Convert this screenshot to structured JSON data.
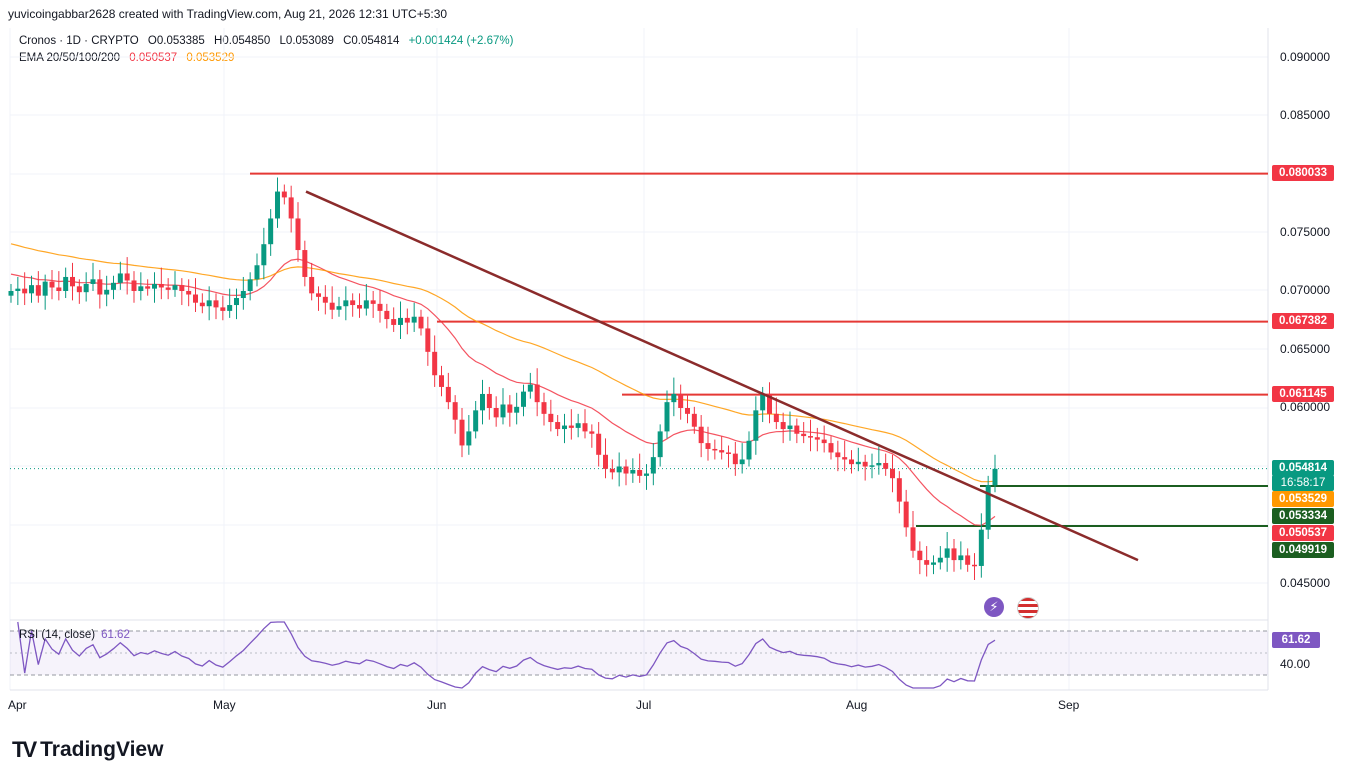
{
  "header": {
    "attribution": "yuvicoingabbar2628 created with TradingView.com, Aug 21, 2026 12:31 UTC+5:30"
  },
  "legend": {
    "symbol": "Cronos · 1D · CRYPTO",
    "open": "O0.053385",
    "high": "H0.054850",
    "low": "L0.053089",
    "close": "C0.054814",
    "change": "+0.001424 (+2.67%)",
    "ema_label": "EMA 20/50/100/200",
    "ema1": "0.050537",
    "ema2": "0.053529"
  },
  "rsi_legend": {
    "label": "RSI (14, close)",
    "value": "61.62"
  },
  "brand": {
    "name": "TradingView",
    "logo": "TV"
  },
  "colors": {
    "up": "#089981",
    "down": "#f23645",
    "ema20": "#f23645",
    "ema50": "#ff9800",
    "trendline": "#8b2b2b",
    "support": "#1b5e20",
    "resistance": "#e53935",
    "rsi": "#7e57c2"
  },
  "icons": [
    "lightning-icon",
    "us-flag-icon"
  ],
  "chart_data": {
    "type": "candlestick",
    "symbol": "Cronos",
    "interval": "1D",
    "x_labels": [
      "Apr",
      "May",
      "Jun",
      "Jul",
      "Aug",
      "Sep"
    ],
    "y_ticks": [
      "0.090000",
      "0.085000",
      "0.075000",
      "0.070000",
      "0.065000",
      "0.060000",
      "0.045000"
    ],
    "ylim": [
      0.0435,
      0.0912
    ],
    "price_labels": {
      "resistance_1": "0.080033",
      "resistance_2": "0.067382",
      "resistance_3": "0.061145",
      "last_price": "0.054814",
      "countdown": "16:58:17",
      "ema50_value": "0.053529",
      "support_1": "0.053334",
      "ema20_value": "0.050537",
      "support_2": "0.049919"
    },
    "horizontal_levels": {
      "resistance": [
        0.080033,
        0.067382,
        0.061145
      ],
      "support": [
        0.053334,
        0.049919
      ],
      "last_price": 0.054814
    },
    "trendline": {
      "from": [
        0.0785
      ],
      "to": [
        0.047
      ]
    },
    "rsi": {
      "period": 14,
      "source": "close",
      "value": 61.62,
      "tick": "40.00"
    },
    "ohlc_path": [
      0.07,
      0.0702,
      0.0698,
      0.0705,
      0.0696,
      0.0708,
      0.0703,
      0.07,
      0.0712,
      0.0704,
      0.0699,
      0.0706,
      0.071,
      0.0697,
      0.0701,
      0.0707,
      0.0715,
      0.0709,
      0.07,
      0.0704,
      0.0702,
      0.0706,
      0.0703,
      0.0701,
      0.0705,
      0.07,
      0.0697,
      0.069,
      0.0687,
      0.0692,
      0.0686,
      0.0683,
      0.0688,
      0.0694,
      0.07,
      0.071,
      0.0722,
      0.074,
      0.0762,
      0.0785,
      0.078,
      0.0762,
      0.0735,
      0.0712,
      0.0698,
      0.0695,
      0.069,
      0.0684,
      0.0687,
      0.0692,
      0.0688,
      0.0685,
      0.0692,
      0.0689,
      0.0683,
      0.0676,
      0.0671,
      0.0677,
      0.0673,
      0.0678,
      0.0668,
      0.0648,
      0.0628,
      0.0618,
      0.0605,
      0.059,
      0.0568,
      0.058,
      0.0598,
      0.0612,
      0.06,
      0.0592,
      0.0603,
      0.0596,
      0.0601,
      0.0614,
      0.062,
      0.0605,
      0.0595,
      0.0588,
      0.0582,
      0.0585,
      0.0583,
      0.0587,
      0.058,
      0.0578,
      0.056,
      0.0548,
      0.0545,
      0.055,
      0.0544,
      0.0547,
      0.0542,
      0.0544,
      0.0558,
      0.058,
      0.0605,
      0.0612,
      0.06,
      0.0595,
      0.0584,
      0.057,
      0.0565,
      0.0564,
      0.0562,
      0.0561,
      0.0552,
      0.0556,
      0.0572,
      0.0598,
      0.0612,
      0.0595,
      0.0588,
      0.0582,
      0.0585,
      0.0578,
      0.0576,
      0.0575,
      0.0573,
      0.057,
      0.0562,
      0.0558,
      0.0556,
      0.0552,
      0.0554,
      0.055,
      0.0551,
      0.0553,
      0.0548,
      0.054,
      0.052,
      0.0498,
      0.0478,
      0.047,
      0.0466,
      0.0468,
      0.0472,
      0.048,
      0.047,
      0.0474,
      0.0466,
      0.0465,
      0.0496,
      0.0534,
      0.0548
    ]
  }
}
